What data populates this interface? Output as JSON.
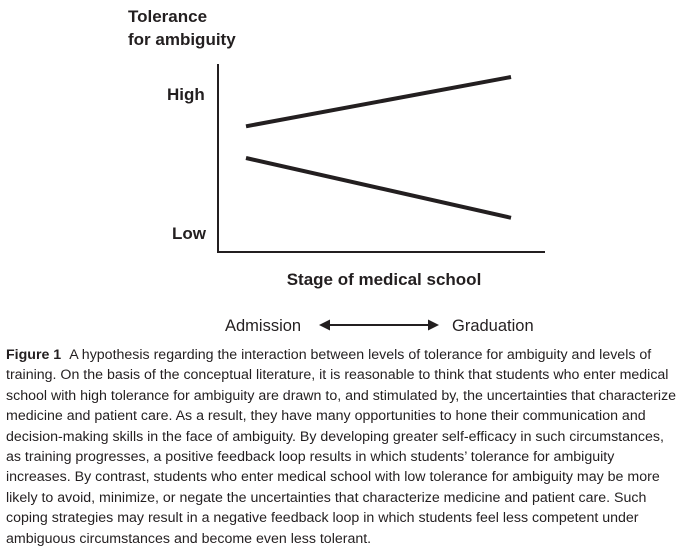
{
  "chart_data": {
    "type": "line",
    "ylabel_line1": "Tolerance",
    "ylabel_line2": "for ambiguity",
    "xlabel": "Stage of medical school",
    "y_ticks": [
      "High",
      "Low"
    ],
    "x_range_labels": {
      "start": "Admission",
      "end": "Graduation"
    },
    "x": [
      0,
      1
    ],
    "ylim": [
      0,
      1
    ],
    "series": [
      {
        "values": [
          0.72,
          1.0
        ]
      },
      {
        "values": [
          0.54,
          0.2
        ]
      }
    ],
    "grid": false
  },
  "caption": {
    "label": "Figure 1",
    "text": "A hypothesis regarding the interaction between levels of tolerance for ambiguity and levels of training. On the basis of the conceptual literature, it is reasonable to think that students who enter medical school with high tolerance for ambiguity are drawn to, and stimulated by, the uncertainties that characterize medicine and patient care. As a result, they have many opportunities to hone their communication and decision-making skills in the face of ambiguity. By developing greater self-efficacy in such circumstances, as training progresses, a positive feedback loop results in which students’ tolerance for ambiguity increases. By contrast, students who enter medical school with low tolerance for ambiguity may be more likely to avoid, minimize, or negate the uncertainties that characterize medicine and patient care. Such coping strategies may result in a negative feedback loop in which students feel less competent under ambiguous circumstances and become even less tolerant."
  },
  "colors": {
    "ink": "#231f20"
  }
}
